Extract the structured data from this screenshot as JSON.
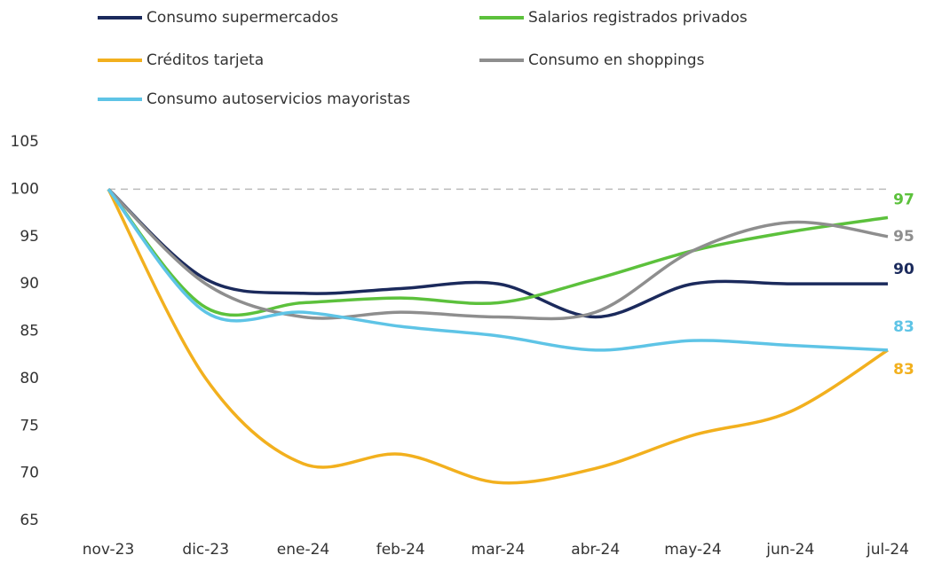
{
  "chart_data": {
    "type": "line",
    "categories": [
      "nov-23",
      "dic-23",
      "ene-24",
      "feb-24",
      "mar-24",
      "abr-24",
      "may-24",
      "jun-24",
      "jul-24"
    ],
    "series": [
      {
        "name": "Consumo supermercados",
        "color": "#1b2a5c",
        "values": [
          100,
          90.5,
          89,
          89.5,
          90,
          86.5,
          90,
          90,
          90
        ]
      },
      {
        "name": "Salarios registrados privados",
        "color": "#5cc13c",
        "values": [
          100,
          87.5,
          88,
          88.5,
          88,
          90.5,
          93.5,
          95.5,
          97
        ]
      },
      {
        "name": "Créditos tarjeta",
        "color": "#f2b01e",
        "values": [
          100,
          80,
          71,
          72,
          69,
          70.5,
          74,
          76.5,
          83
        ]
      },
      {
        "name": "Consumo en shoppings",
        "color": "#8e8e8e",
        "values": [
          100,
          90,
          86.5,
          87,
          86.5,
          87,
          93.5,
          96.5,
          95
        ]
      },
      {
        "name": "Consumo autoservicios mayoristas",
        "color": "#5ec4e6",
        "values": [
          100,
          87,
          87,
          85.5,
          84.5,
          83,
          84,
          83.5,
          83
        ]
      }
    ],
    "ylim": [
      65,
      105
    ],
    "yticks": [
      65,
      70,
      75,
      80,
      85,
      90,
      95,
      100,
      105
    ],
    "reference_line": 100
  }
}
